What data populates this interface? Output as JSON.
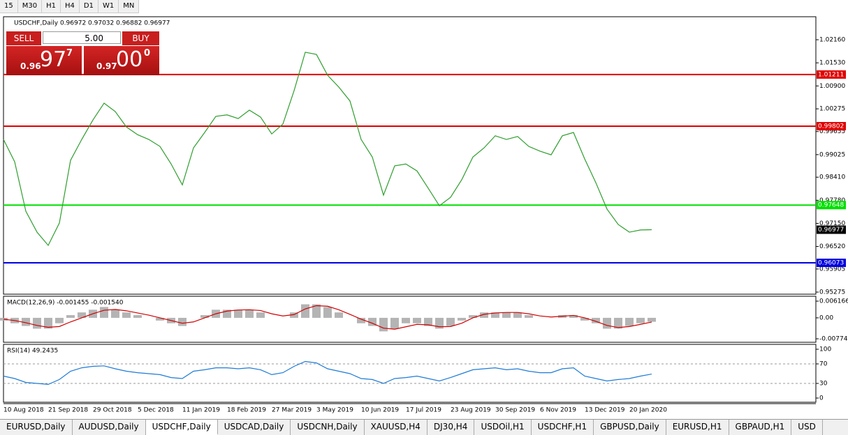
{
  "toolbar": {
    "timeframes": [
      "15",
      "M30",
      "H1",
      "H4",
      "D1",
      "W1",
      "MN"
    ]
  },
  "trade": {
    "sell": "SELL",
    "buy": "BUY",
    "lot": "5.00",
    "sell_big": "0.96",
    "sell_pips": "97",
    "sell_frac": "7",
    "buy_big": "0.97",
    "buy_pips": "00",
    "buy_frac": "0"
  },
  "tabs": [
    "EURUSD,Daily",
    "AUDUSD,Daily",
    "USDCHF,Daily",
    "USDCAD,Daily",
    "USDCNH,Daily",
    "XAUUSD,H4",
    "DJ30,H4",
    "USDOil,H1",
    "USDCHF,H1",
    "GBPUSD,Daily",
    "EURUSD,H1",
    "GBPAUD,H1",
    "USD"
  ],
  "chart_data": [
    {
      "type": "line",
      "title": "USDCHF,Daily  0.96972 0.97032 0.96882 0.96977",
      "x": [
        "10 Aug 2018",
        null,
        null,
        null,
        "21 Sep 2018",
        null,
        null,
        null,
        "29 Oct 2018",
        null,
        null,
        null,
        "5 Dec 2018",
        null,
        null,
        null,
        "11 Jan 2019",
        null,
        null,
        null,
        "18 Feb 2019",
        null,
        null,
        null,
        "27 Mar 2019",
        null,
        null,
        null,
        "3 May 2019",
        null,
        null,
        null,
        "10 Jun 2019",
        null,
        null,
        null,
        "17 Jul 2019",
        null,
        null,
        null,
        "23 Aug 2019",
        null,
        null,
        null,
        "30 Sep 2019",
        null,
        null,
        null,
        "6 Nov 2019",
        null,
        null,
        null,
        "13 Dec 2019",
        null,
        null,
        null,
        "20 Jan 2020",
        null,
        null
      ],
      "series": [
        {
          "color": "#2e9e2e",
          "values": [
            0.9944,
            0.9883,
            0.9748,
            0.9691,
            0.9655,
            0.9716,
            0.9887,
            0.9944,
            0.9997,
            1.0043,
            1.002,
            0.9978,
            0.9957,
            0.9944,
            0.9925,
            0.9877,
            0.982,
            0.9921,
            0.9963,
            1.0007,
            1.0011,
            1.0001,
            1.0024,
            1.0005,
            0.9959,
            0.9986,
            1.0077,
            1.0182,
            1.0176,
            1.0119,
            1.0087,
            1.0049,
            0.9944,
            0.9896,
            0.9792,
            0.9872,
            0.9877,
            0.9858,
            0.9811,
            0.9763,
            0.9786,
            0.9834,
            0.9896,
            0.9921,
            0.9954,
            0.9944,
            0.9952,
            0.9925,
            0.9912,
            0.9902,
            0.9954,
            0.9963,
            0.9891,
            0.9826,
            0.9754,
            0.9712,
            0.9691,
            0.9697,
            0.96977
          ]
        }
      ],
      "ylim": [
        0.95218,
        1.02788
      ],
      "yticks": [
        {
          "value": 1.0216,
          "label": "1.02160"
        },
        {
          "value": 1.0153,
          "label": "1.01530"
        },
        {
          "value": 1.009,
          "label": "1.00900"
        },
        1.00275,
        0.99655,
        0.99025,
        {
          "value": 0.9841,
          "label": "0.98410"
        },
        {
          "value": 0.9778,
          "label": "0.97780"
        },
        {
          "value": 0.9715,
          "label": "0.97150"
        },
        {
          "value": 0.9652,
          "label": "0.96520"
        },
        0.95905,
        0.95275
      ],
      "levels": [
        {
          "value": 1.01211,
          "color": "#e00000"
        },
        {
          "value": 0.99802,
          "color": "#e00000"
        },
        {
          "value": 0.97648,
          "color": "#00e000"
        },
        {
          "value": 0.96073,
          "color": "#0000e0"
        }
      ],
      "last": 0.96977
    },
    {
      "type": "bar",
      "title": "MACD(12,26,9) -0.001455 -0.001540",
      "series": [
        {
          "style": "bar",
          "color": "#b4b4b4",
          "values": [
            -0.001,
            -0.002,
            -0.003,
            -0.004,
            -0.004,
            -0.002,
            0.001,
            0.002,
            0.003,
            0.004,
            0.003,
            0.002,
            0.001,
            0.0,
            -0.001,
            -0.002,
            -0.003,
            0.0,
            0.001,
            0.003,
            0.003,
            0.003,
            0.003,
            0.002,
            0.0,
            0.0,
            0.002,
            0.005,
            0.005,
            0.004,
            0.002,
            0.0,
            -0.002,
            -0.003,
            -0.005,
            -0.004,
            -0.002,
            -0.002,
            -0.003,
            -0.004,
            -0.003,
            -0.001,
            0.001,
            0.002,
            0.002,
            0.002,
            0.002,
            0.001,
            0.0,
            0.0,
            0.001,
            0.001,
            -0.001,
            -0.002,
            -0.004,
            -0.004,
            -0.003,
            -0.002,
            -0.001455
          ]
        },
        {
          "style": "line",
          "color": "#d00000",
          "values": [
            -0.0005,
            -0.001,
            -0.0018,
            -0.0028,
            -0.0035,
            -0.0032,
            -0.0015,
            0.0,
            0.0015,
            0.0028,
            0.0031,
            0.0026,
            0.0018,
            0.001,
            0.0,
            -0.001,
            -0.002,
            -0.0015,
            0.0,
            0.0015,
            0.0025,
            0.0029,
            0.003,
            0.0027,
            0.0015,
            0.0007,
            0.0012,
            0.0033,
            0.0045,
            0.0043,
            0.003,
            0.0013,
            -0.0005,
            -0.002,
            -0.0038,
            -0.0042,
            -0.0033,
            -0.0024,
            -0.0026,
            -0.0033,
            -0.0032,
            -0.002,
            0.0,
            0.0013,
            0.0018,
            0.002,
            0.002,
            0.0015,
            0.0007,
            0.0003,
            0.0006,
            0.0009,
            0.0,
            -0.0013,
            -0.0028,
            -0.0036,
            -0.0032,
            -0.0024,
            -0.00154
          ]
        }
      ],
      "ylim": [
        -0.009033,
        0.007969
      ],
      "yticks": [
        0.006166,
        {
          "value": 0,
          "label": "0.00"
        },
        -0.007745
      ]
    },
    {
      "type": "line",
      "title": "RSI(14) 49.2435",
      "series": [
        {
          "color": "#1e7bd6",
          "values": [
            45,
            40,
            32,
            30,
            28,
            38,
            55,
            62,
            65,
            66,
            60,
            55,
            52,
            50,
            48,
            42,
            40,
            55,
            58,
            62,
            62,
            60,
            62,
            58,
            48,
            52,
            65,
            75,
            72,
            60,
            55,
            50,
            40,
            38,
            30,
            40,
            42,
            45,
            40,
            35,
            42,
            50,
            58,
            60,
            62,
            58,
            60,
            55,
            52,
            52,
            60,
            62,
            45,
            40,
            35,
            38,
            40,
            45,
            49.2435
          ]
        }
      ],
      "ylim": [
        -8.57,
        110
      ],
      "yticks": [
        100,
        70,
        30,
        0
      ],
      "levels": [
        {
          "value": 70,
          "color": "#999999"
        },
        {
          "value": 30,
          "color": "#999999"
        }
      ]
    }
  ]
}
